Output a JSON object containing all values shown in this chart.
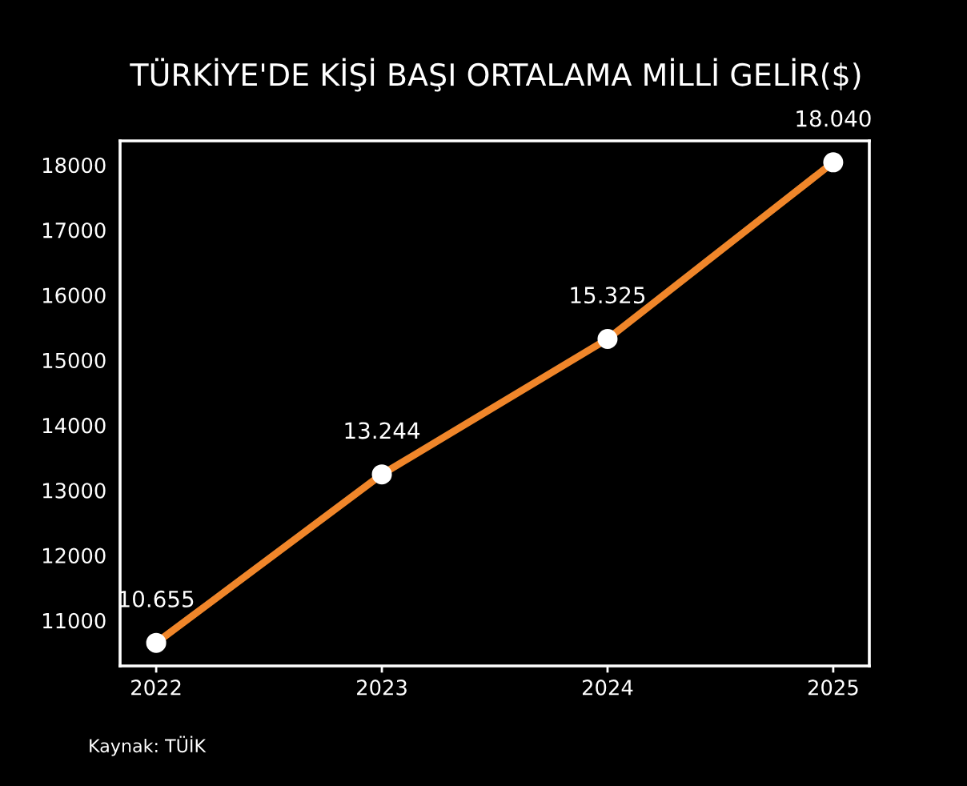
{
  "chart_data": {
    "type": "line",
    "title": "TÜRKİYE'DE KİŞİ BAŞI ORTALAMA MİLLİ GELİR($)",
    "categories": [
      "2022",
      "2023",
      "2024",
      "2025"
    ],
    "series": [
      {
        "color": "#f0862a",
        "values": [
          10655,
          13244,
          15325,
          18040
        ],
        "value_labels": [
          "10.655",
          "13.244",
          "15.325",
          "18.040"
        ]
      }
    ],
    "ylim": [
      10300,
      18370
    ],
    "yticks": [
      11000,
      12000,
      13000,
      14000,
      15000,
      16000,
      17000,
      18000
    ],
    "marker": "circle",
    "line_style": "solid",
    "grid": false,
    "annotations": [
      "Kaynak: TÜİK"
    ]
  }
}
